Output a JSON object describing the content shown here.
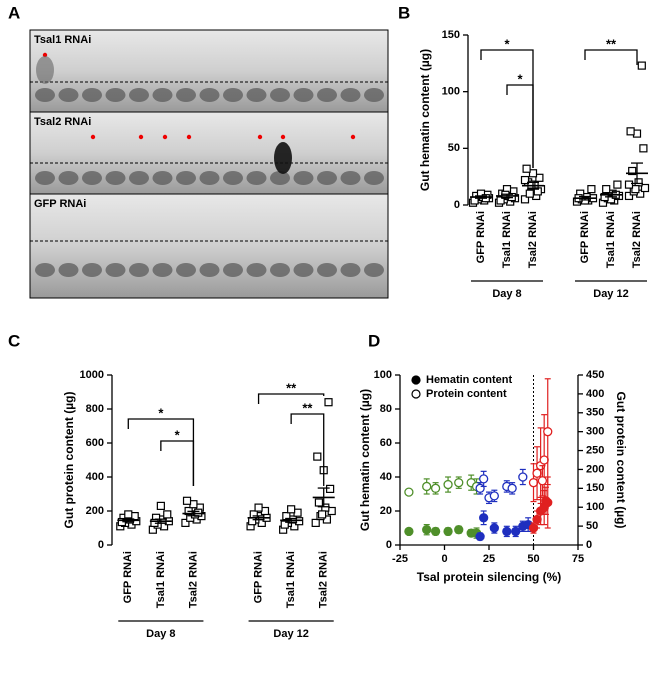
{
  "panel_labels": [
    "A",
    "B",
    "C",
    "D"
  ],
  "gel": {
    "lanes": [
      "Tsal1 RNAi",
      "Tsal2 RNAi",
      "GFP RNAi"
    ]
  },
  "chart_data": [
    {
      "type": "dot",
      "ylabel": "Gut hematin content (µg)",
      "categories": [
        "GFP RNAi",
        "Tsal1 RNAi",
        "Tsal2 RNAi",
        "GFP RNAi",
        "Tsal1 RNAi",
        "Tsal2 RNAi"
      ],
      "group_labels": [
        "Day 8",
        "Day 12"
      ],
      "points": [
        [
          2,
          4,
          5,
          6,
          7,
          8,
          9,
          10,
          4,
          6
        ],
        [
          2,
          3,
          5,
          6,
          8,
          10,
          12,
          14,
          4,
          7,
          9
        ],
        [
          5,
          8,
          10,
          14,
          17,
          20,
          24,
          28,
          32,
          12,
          18,
          22
        ],
        [
          3,
          4,
          5,
          6,
          7,
          10,
          14,
          4,
          6
        ],
        [
          2,
          4,
          6,
          8,
          10,
          14,
          18,
          5,
          7,
          9
        ],
        [
          8,
          10,
          12,
          15,
          20,
          30,
          50,
          63,
          65,
          123,
          14,
          18
        ]
      ],
      "means": [
        7,
        8,
        17,
        6,
        9,
        28
      ],
      "errors": [
        1,
        1.5,
        3,
        1.5,
        1.8,
        9
      ],
      "significance": [
        "*",
        "*",
        "**"
      ],
      "ylim": [
        0,
        150
      ],
      "yticks": [
        0,
        50,
        100,
        150
      ],
      "color": "#000000"
    },
    {
      "type": "dot",
      "ylabel": "Gut protein content (µg)",
      "categories": [
        "GFP RNAi",
        "Tsal1 RNAi",
        "Tsal2 RNAi",
        "GFP RNAi",
        "Tsal1 RNAi",
        "Tsal2 RNAi"
      ],
      "group_labels": [
        "Day 8",
        "Day 12"
      ],
      "points": [
        [
          110,
          120,
          130,
          140,
          150,
          160,
          170,
          180,
          135
        ],
        [
          90,
          110,
          120,
          140,
          150,
          160,
          180,
          230,
          130
        ],
        [
          130,
          150,
          160,
          170,
          180,
          200,
          220,
          240,
          260,
          190
        ],
        [
          110,
          130,
          150,
          160,
          170,
          180,
          200,
          220,
          140
        ],
        [
          90,
          110,
          130,
          140,
          150,
          170,
          190,
          210,
          120
        ],
        [
          130,
          150,
          170,
          200,
          220,
          250,
          330,
          440,
          520,
          840,
          180
        ]
      ],
      "means": [
        145,
        140,
        185,
        160,
        145,
        280
      ],
      "errors": [
        8,
        12,
        13,
        11,
        11,
        55
      ],
      "significance": [
        "*",
        "*",
        "**",
        "**"
      ],
      "ylim": [
        0,
        1000
      ],
      "yticks": [
        0,
        200,
        400,
        600,
        800,
        1000
      ],
      "color": "#000000"
    },
    {
      "type": "scatter",
      "xlabel": "Tsal protein silencing (%)",
      "ylabel": "Gut hematin content (µg)",
      "y2label": "Gut protein content (µg)",
      "xlim": [
        -25,
        75
      ],
      "xticks": [
        -25,
        0,
        25,
        50,
        75
      ],
      "ylim": [
        0,
        100
      ],
      "yticks": [
        0,
        20,
        40,
        60,
        80,
        100
      ],
      "y2lim": [
        0,
        450
      ],
      "y2ticks": [
        0,
        50,
        100,
        150,
        200,
        250,
        300,
        350,
        400,
        450
      ],
      "vline": 50,
      "series": [
        {
          "name": "Hematin content",
          "marker": "filled",
          "x": [
            -20,
            -10,
            -5,
            2,
            8,
            15,
            18,
            20,
            22,
            28,
            35,
            40,
            44,
            47,
            50,
            52,
            54,
            56,
            58,
            57
          ],
          "values": [
            8,
            9,
            8,
            8,
            9,
            7,
            7,
            5,
            16,
            10,
            8,
            8,
            11,
            12,
            10,
            15,
            20,
            22,
            25,
            26
          ],
          "errors": [
            1,
            3,
            2,
            2,
            2,
            2,
            3,
            2,
            4,
            3,
            3,
            3,
            3,
            4,
            3,
            5,
            8,
            10,
            15,
            8
          ],
          "colors": [
            "#4f8f2a",
            "#4f8f2a",
            "#4f8f2a",
            "#4f8f2a",
            "#4f8f2a",
            "#4f8f2a",
            "#4f8f2a",
            "#1f2fbf",
            "#1f2fbf",
            "#1f2fbf",
            "#1f2fbf",
            "#1f2fbf",
            "#1f2fbf",
            "#1f2fbf",
            "#e02020",
            "#e02020",
            "#e02020",
            "#e02020",
            "#e02020",
            "#e02020"
          ]
        },
        {
          "name": "Protein content",
          "marker": "open",
          "axis": "y2",
          "x": [
            -20,
            -10,
            -5,
            2,
            8,
            15,
            18,
            20,
            22,
            25,
            28,
            35,
            38,
            44,
            50,
            52,
            54,
            56,
            58,
            55
          ],
          "values": [
            140,
            155,
            150,
            160,
            165,
            165,
            155,
            150,
            175,
            125,
            130,
            155,
            150,
            180,
            165,
            190,
            210,
            225,
            300,
            170
          ],
          "errors": [
            5,
            20,
            15,
            20,
            15,
            20,
            20,
            15,
            20,
            15,
            15,
            15,
            15,
            20,
            50,
            70,
            100,
            120,
            140,
            40
          ],
          "colors": [
            "#4f8f2a",
            "#4f8f2a",
            "#4f8f2a",
            "#4f8f2a",
            "#4f8f2a",
            "#4f8f2a",
            "#4f8f2a",
            "#1f2fbf",
            "#1f2fbf",
            "#1f2fbf",
            "#1f2fbf",
            "#1f2fbf",
            "#1f2fbf",
            "#1f2fbf",
            "#e02020",
            "#e02020",
            "#e02020",
            "#e02020",
            "#e02020",
            "#e02020"
          ]
        }
      ]
    }
  ]
}
